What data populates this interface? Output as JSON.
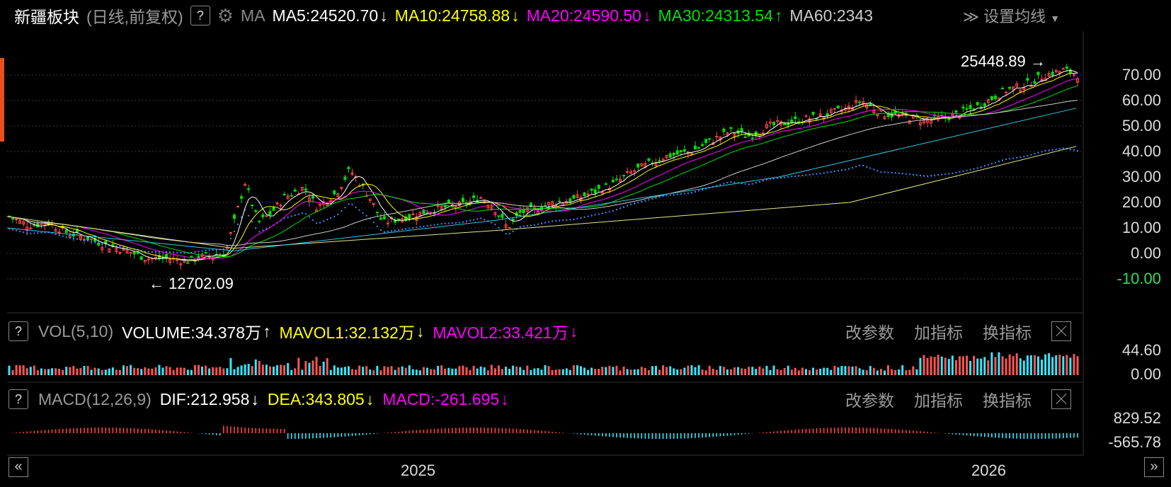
{
  "header": {
    "title": "新疆板块",
    "subtitle": "(日线,前复权)",
    "help": "?",
    "ma_label": "MA",
    "ma5": "MA5:24520.70",
    "ma10": "MA10:24758.88",
    "ma20": "MA20:24590.50",
    "ma30": "MA30:24313.54",
    "ma60": "MA60:2343",
    "settings": "设置均线",
    "arrow_down": "↓",
    "arrow_up": "↑",
    "colors": {
      "ma5": "#ffffff",
      "ma10": "#ffff00",
      "ma20": "#ff00ff",
      "ma30": "#00e000",
      "ma60": "#cccccc"
    }
  },
  "price_axis": {
    "ticks": [
      "70.00",
      "60.00",
      "50.00",
      "40.00",
      "30.00",
      "20.00",
      "10.00",
      "0.00",
      "-10.00"
    ],
    "high_label": "25448.89",
    "low_label": "12702.09"
  },
  "volume_panel": {
    "help": "?",
    "name": "VOL(5,10)",
    "volume": "VOLUME:34.378万",
    "mavol1": "MAVOL1:32.132万",
    "mavol2": "MAVOL2:33.421万",
    "arrow_up": "↑",
    "arrow_down": "↓",
    "ticks": [
      "44.60",
      "0.00"
    ],
    "tools": [
      "改参数",
      "加指标",
      "换指标"
    ]
  },
  "macd_panel": {
    "help": "?",
    "name": "MACD(12,26,9)",
    "dif": "DIF:212.958",
    "dea": "DEA:343.805",
    "macd": "MACD:-261.695",
    "arrow_down": "↓",
    "ticks": [
      "829.52",
      "-565.78"
    ],
    "tools": [
      "改参数",
      "加指标",
      "换指标"
    ]
  },
  "x_axis": {
    "labels": [
      "2025",
      "2026"
    ],
    "prev": "«",
    "next": "»"
  },
  "chart_data": {
    "type": "line",
    "title": "新疆板块",
    "series": [
      {
        "name": "MA5",
        "color": "#ffffff"
      },
      {
        "name": "MA10",
        "color": "#ffff00"
      },
      {
        "name": "MA20",
        "color": "#ff00ff"
      },
      {
        "name": "MA30",
        "color": "#00e000"
      },
      {
        "name": "MA60",
        "color": "#cccccc"
      }
    ],
    "price_path": [
      [
        0,
        14.5
      ],
      [
        0.03,
        11
      ],
      [
        0.06,
        12
      ],
      [
        0.09,
        8
      ],
      [
        0.12,
        6
      ],
      [
        0.15,
        3
      ],
      [
        0.18,
        1
      ],
      [
        0.21,
        -2
      ],
      [
        0.24,
        -2
      ],
      [
        0.27,
        -3
      ],
      [
        0.3,
        -1
      ],
      [
        0.33,
        0
      ],
      [
        0.36,
        28
      ],
      [
        0.38,
        12
      ],
      [
        0.4,
        16
      ],
      [
        0.42,
        22
      ],
      [
        0.45,
        26
      ],
      [
        0.47,
        18
      ],
      [
        0.5,
        24
      ],
      [
        0.52,
        33
      ],
      [
        0.55,
        22
      ],
      [
        0.57,
        12
      ],
      [
        0.6,
        14
      ],
      [
        0.63,
        16
      ],
      [
        0.66,
        18
      ],
      [
        0.69,
        19
      ],
      [
        0.72,
        22
      ],
      [
        0.74,
        18
      ],
      [
        0.76,
        10
      ],
      [
        0.78,
        16
      ],
      [
        0.8,
        17
      ],
      [
        0.83,
        20
      ],
      [
        0.86,
        21
      ],
      [
        0.89,
        24
      ],
      [
        0.92,
        27
      ],
      [
        0.95,
        32
      ],
      [
        1.0,
        38
      ],
      [
        1.04,
        40
      ],
      [
        1.07,
        44
      ],
      [
        1.1,
        48
      ],
      [
        1.13,
        46
      ],
      [
        1.16,
        50
      ],
      [
        1.2,
        52
      ],
      [
        1.24,
        54
      ],
      [
        1.28,
        57
      ],
      [
        1.3,
        60
      ],
      [
        1.33,
        55
      ],
      [
        1.36,
        54
      ],
      [
        1.4,
        52
      ],
      [
        1.44,
        54
      ],
      [
        1.48,
        58
      ],
      [
        1.52,
        64
      ],
      [
        1.55,
        66
      ],
      [
        1.58,
        70
      ],
      [
        1.61,
        72
      ],
      [
        1.63,
        70
      ]
    ],
    "highest": 25448.89,
    "lowest": 12702.09,
    "volume": {
      "current_wan": 34.378,
      "mavol1_wan": 32.132,
      "mavol2_wan": 33.421,
      "axis_max": 44.6,
      "axis_min": 0.0
    },
    "macd": {
      "dif": 212.958,
      "dea": 343.805,
      "macd": -261.695,
      "axis_max": 829.52,
      "axis_min": -565.78
    },
    "y_ticks": [
      70,
      60,
      50,
      40,
      30,
      20,
      10,
      0,
      -10
    ]
  }
}
